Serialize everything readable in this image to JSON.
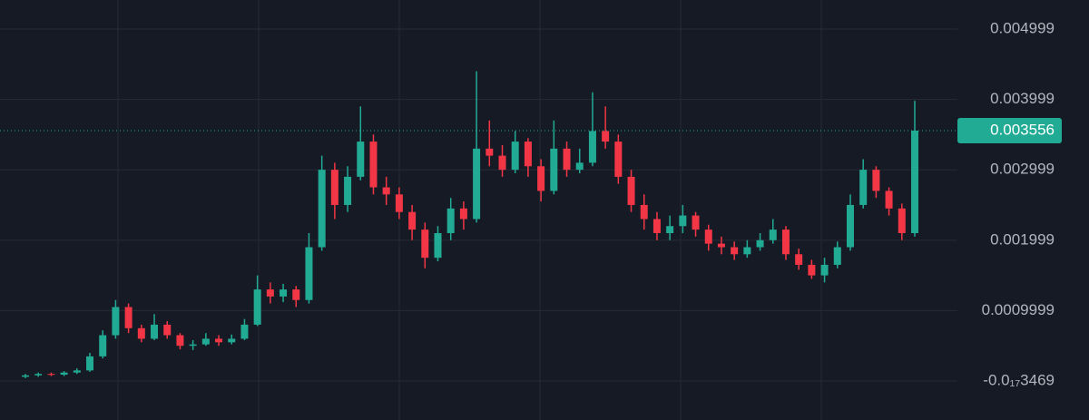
{
  "chart_data": {
    "type": "candlestick",
    "open": [
      6e-05,
      8e-05,
      0.0001,
      9e-05,
      0.00012,
      0.00015,
      0.00035,
      0.00065,
      0.00105,
      0.00075,
      0.0006,
      0.0008,
      0.00065,
      0.0005,
      0.00052,
      0.0006,
      0.00055,
      0.0006,
      0.0008,
      0.0013,
      0.0012,
      0.0013,
      0.00115,
      0.0019,
      0.003,
      0.0025,
      0.0029,
      0.0034,
      0.00275,
      0.00265,
      0.0024,
      0.00215,
      0.00175,
      0.0021,
      0.00245,
      0.0023,
      0.0033,
      0.0032,
      0.003,
      0.0034,
      0.00305,
      0.0027,
      0.0033,
      0.003,
      0.0031,
      0.00355,
      0.0034,
      0.0029,
      0.0025,
      0.0023,
      0.0021,
      0.0022,
      0.00235,
      0.00215,
      0.00195,
      0.0019,
      0.0018,
      0.0019,
      0.002,
      0.00215,
      0.0018,
      0.00165,
      0.0015,
      0.00165,
      0.0019,
      0.0025,
      0.003,
      0.0027,
      0.00245,
      0.0021
    ],
    "high": [
      0.0001,
      0.00012,
      0.00012,
      0.00014,
      0.00018,
      0.0004,
      0.00072,
      0.00115,
      0.0011,
      0.0008,
      0.00095,
      0.00085,
      0.00068,
      0.00058,
      0.00068,
      0.00065,
      0.00066,
      0.00088,
      0.0015,
      0.0014,
      0.00138,
      0.00135,
      0.0021,
      0.0032,
      0.0031,
      0.00305,
      0.0039,
      0.0035,
      0.0029,
      0.00275,
      0.0025,
      0.00225,
      0.0022,
      0.0026,
      0.00255,
      0.0044,
      0.0037,
      0.00335,
      0.00355,
      0.00345,
      0.00315,
      0.0037,
      0.0034,
      0.0033,
      0.0041,
      0.0039,
      0.0035,
      0.003,
      0.00265,
      0.0024,
      0.00235,
      0.0025,
      0.0024,
      0.00222,
      0.00205,
      0.00198,
      0.002,
      0.0021,
      0.0023,
      0.0022,
      0.00188,
      0.00172,
      0.00175,
      0.00198,
      0.00265,
      0.00315,
      0.00305,
      0.00275,
      0.00252,
      0.00398
    ],
    "low": [
      4e-05,
      6e-05,
      7e-05,
      7e-05,
      0.0001,
      0.00013,
      0.00032,
      0.0006,
      0.00068,
      0.00055,
      0.00058,
      0.0006,
      0.00045,
      0.00044,
      0.0005,
      0.0005,
      0.00052,
      0.00058,
      0.00078,
      0.0011,
      0.00112,
      0.00105,
      0.0011,
      0.00185,
      0.0023,
      0.0024,
      0.00285,
      0.00265,
      0.0025,
      0.0023,
      0.002,
      0.0016,
      0.0017,
      0.002,
      0.00215,
      0.00225,
      0.00305,
      0.0029,
      0.00295,
      0.0029,
      0.00255,
      0.00265,
      0.0029,
      0.00295,
      0.00305,
      0.0033,
      0.0028,
      0.0024,
      0.00215,
      0.002,
      0.002,
      0.0021,
      0.00205,
      0.00185,
      0.0018,
      0.00172,
      0.00175,
      0.00185,
      0.00195,
      0.00172,
      0.00158,
      0.00145,
      0.0014,
      0.0016,
      0.00185,
      0.00245,
      0.0026,
      0.00235,
      0.002,
      0.00205
    ],
    "close": [
      8e-05,
      0.0001,
      9e-05,
      0.00012,
      0.00015,
      0.00035,
      0.00065,
      0.00105,
      0.00075,
      0.0006,
      0.0008,
      0.00065,
      0.0005,
      0.00052,
      0.0006,
      0.00055,
      0.0006,
      0.0008,
      0.0013,
      0.0012,
      0.0013,
      0.00115,
      0.0019,
      0.003,
      0.0025,
      0.0029,
      0.0034,
      0.00275,
      0.00265,
      0.0024,
      0.00215,
      0.00175,
      0.0021,
      0.00245,
      0.0023,
      0.0033,
      0.0032,
      0.003,
      0.0034,
      0.00305,
      0.0027,
      0.0033,
      0.003,
      0.0031,
      0.00355,
      0.0034,
      0.0029,
      0.0025,
      0.0023,
      0.0021,
      0.0022,
      0.00235,
      0.00215,
      0.00195,
      0.0019,
      0.0018,
      0.0019,
      0.002,
      0.00215,
      0.0018,
      0.00165,
      0.0015,
      0.00165,
      0.0019,
      0.0025,
      0.003,
      0.0027,
      0.00245,
      0.0021,
      0.003556
    ],
    "up_color": "#22ab94",
    "down_color": "#f23645",
    "ylim": [
      -0.000554,
      0.005411
    ],
    "yticks": [
      {
        "value": -3.469e-18,
        "label": "-0.0₁₇3469"
      },
      0.0009999,
      0.001999,
      0.002999,
      0.003999,
      0.004999
    ],
    "grid": true,
    "last_price": 0.003556
  }
}
